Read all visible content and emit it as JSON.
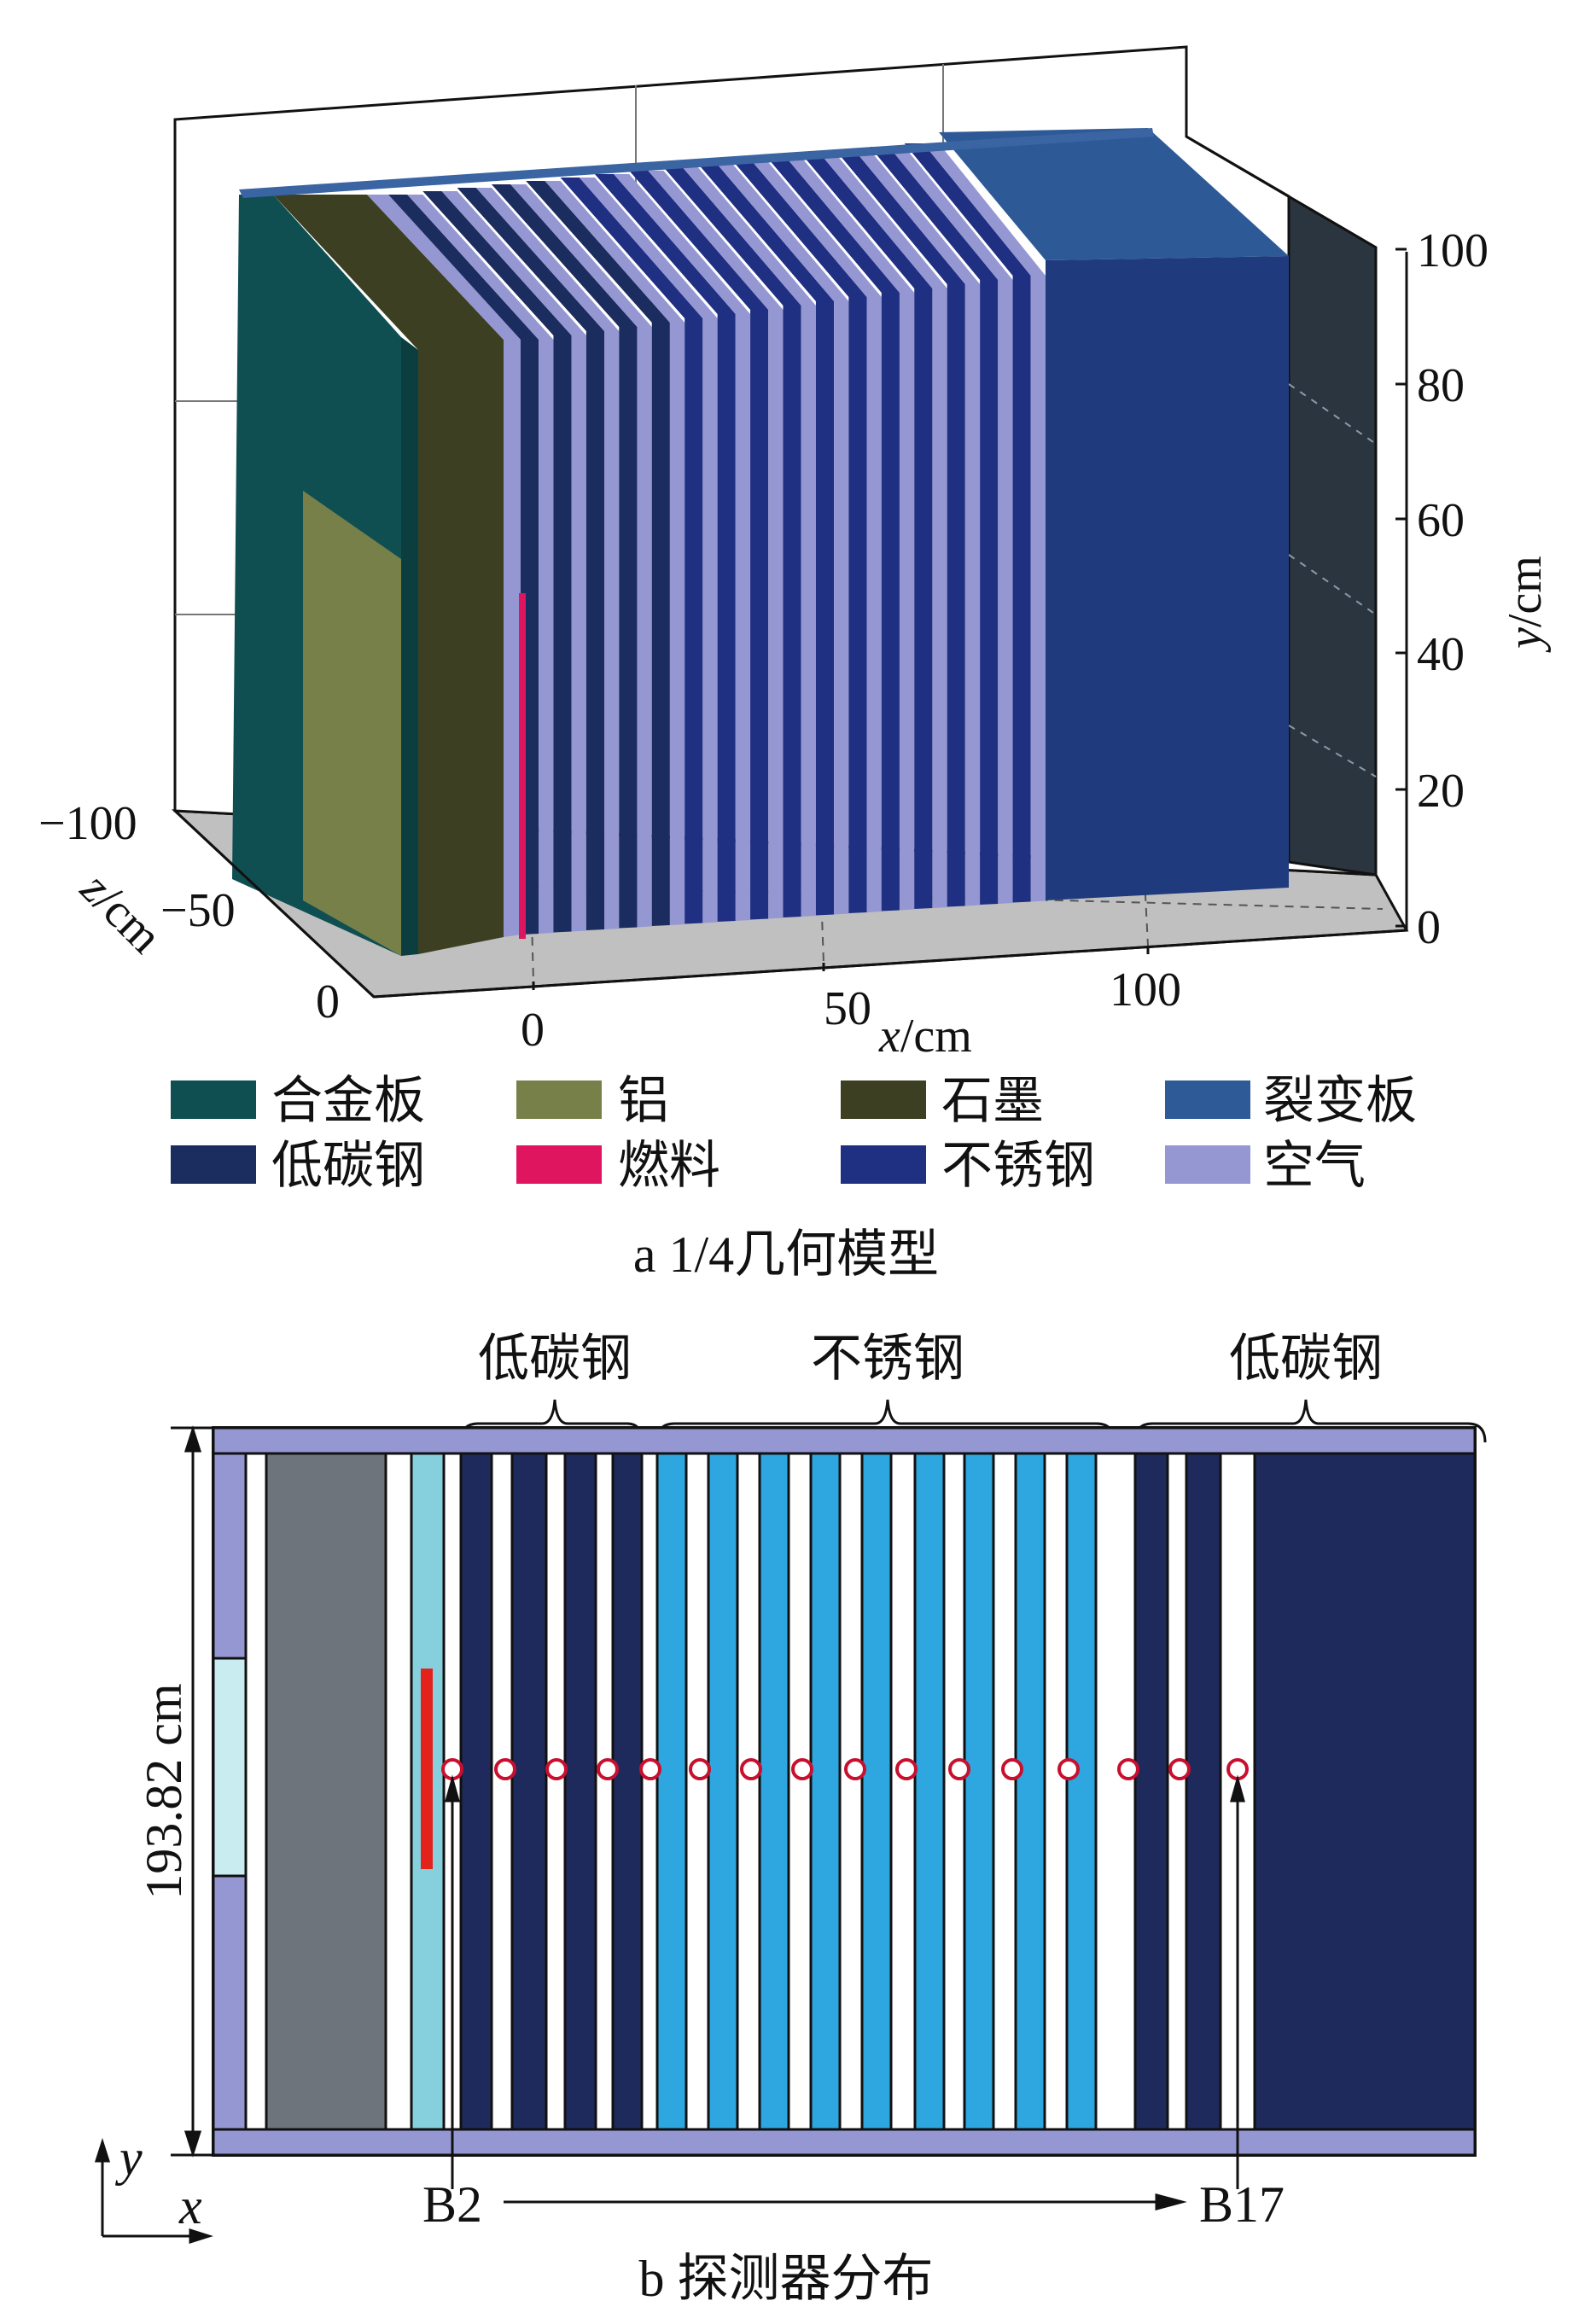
{
  "panel_a": {
    "caption": "a  1/4几何模型",
    "x_axis": {
      "label_italic": "x",
      "label_unit": "/cm",
      "ticks": [
        "0",
        "50",
        "100"
      ]
    },
    "y_axis": {
      "label_italic": "y",
      "label_unit": "/cm",
      "ticks": [
        "0",
        "20",
        "40",
        "60",
        "80",
        "100"
      ]
    },
    "z_axis": {
      "label_italic": "z",
      "label_unit": "/cm",
      "ticks": [
        "−100",
        "−50",
        "0"
      ]
    },
    "legend": [
      {
        "label": "合金板",
        "color": "#0f4f52"
      },
      {
        "label": "铝",
        "color": "#78804a"
      },
      {
        "label": "石墨",
        "color": "#3c3f22"
      },
      {
        "label": "裂变板",
        "color": "#2f5a98"
      },
      {
        "label": "低碳钢",
        "color": "#1b2c5e"
      },
      {
        "label": "燃料",
        "color": "#e0155f"
      },
      {
        "label": "不锈钢",
        "color": "#1f2f82"
      },
      {
        "label": "空气",
        "color": "#9597d2"
      }
    ]
  },
  "panel_b": {
    "caption": "b  探测器分布",
    "group_labels": [
      "低碳钢",
      "不锈钢",
      "低碳钢"
    ],
    "dimension_label": "193.82 cm",
    "detector_start": "B2",
    "detector_end": "B17",
    "axis_x": "x",
    "axis_y": "y",
    "detector_count": 16
  }
}
